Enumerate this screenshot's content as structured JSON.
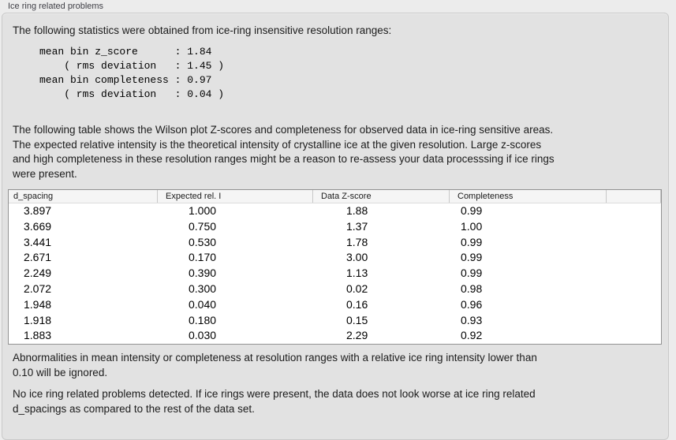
{
  "window": {
    "title": "Ice ring related problems"
  },
  "stats_section": {
    "intro": "The following statistics were obtained from ice-ring insensitive resolution ranges:",
    "lines": [
      "mean bin z_score      : 1.84",
      "    ( rms deviation   : 1.45 )",
      "mean bin completeness : 0.97",
      "    ( rms deviation   : 0.04 )"
    ]
  },
  "description": {
    "lines": [
      "The following table shows the Wilson plot Z-scores and completeness for observed data in ice-ring sensitive areas.",
      "The expected relative intensity is the theoretical intensity of crystalline ice at the given resolution. Large z-scores",
      "and high completeness in these resolution ranges might be a reason to re-assess your data processsing if ice rings",
      "were present."
    ]
  },
  "ice_ring_table": {
    "columns": [
      "d_spacing",
      "Expected rel. I",
      "Data Z-score",
      "Completeness"
    ],
    "rows": [
      [
        "3.897",
        "1.000",
        "1.88",
        "0.99"
      ],
      [
        "3.669",
        "0.750",
        "1.37",
        "1.00"
      ],
      [
        "3.441",
        "0.530",
        "1.78",
        "0.99"
      ],
      [
        "2.671",
        "0.170",
        "3.00",
        "0.99"
      ],
      [
        "2.249",
        "0.390",
        "1.13",
        "0.99"
      ],
      [
        "2.072",
        "0.300",
        "0.02",
        "0.98"
      ],
      [
        "1.948",
        "0.040",
        "0.16",
        "0.96"
      ],
      [
        "1.918",
        "0.180",
        "0.15",
        "0.93"
      ],
      [
        "1.883",
        "0.030",
        "2.29",
        "0.92"
      ]
    ]
  },
  "notes": {
    "threshold": {
      "lines": [
        "Abnormalities in mean intensity or completeness at resolution ranges with a relative ice ring intensity lower than",
        "0.10 will be ignored."
      ]
    },
    "conclusion": {
      "lines": [
        "No ice ring related problems detected. If ice rings were present, the data does not look worse at ice ring related",
        "d_spacings as compared to the rest of the data set."
      ]
    }
  }
}
